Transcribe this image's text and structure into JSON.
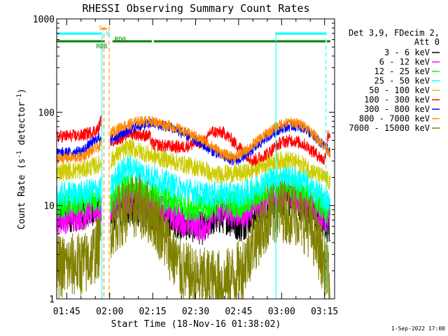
{
  "chart_data": {
    "type": "line",
    "title": "RHESSI Observing Summary Count Rates",
    "xlabel": "Start Time (18-Nov-16 01:38:02)",
    "ylabel_main": "Count Rate (s",
    "ylabel_sup1": "-1",
    "ylabel_mid": " detector",
    "ylabel_sup2": "-1",
    "ylabel_end": ")",
    "yscale": "log",
    "ylim": [
      1,
      1000
    ],
    "xlim_minutes": [
      101.5,
      198.5
    ],
    "y_ticks": [
      {
        "value": 1,
        "label": "1"
      },
      {
        "value": 10,
        "label": "10"
      },
      {
        "value": 100,
        "label": "100"
      },
      {
        "value": 1000,
        "label": "1000"
      }
    ],
    "x_ticks": [
      {
        "value": 105,
        "label": "01:45"
      },
      {
        "value": 120,
        "label": "02:00"
      },
      {
        "value": 135,
        "label": "02:15"
      },
      {
        "value": 150,
        "label": "02:30"
      },
      {
        "value": 165,
        "label": "02:45"
      },
      {
        "value": 180,
        "label": "03:00"
      },
      {
        "value": 195,
        "label": "03:15"
      }
    ],
    "legend": {
      "placement": "right",
      "header": [
        "Det 3,9, FDecim 2,",
        "Att 0"
      ],
      "entries": [
        {
          "label": "3 - 6 keV",
          "color": "#000000"
        },
        {
          "label": "6 - 12 keV",
          "color": "#ff00ff"
        },
        {
          "label": "12 - 25 keV",
          "color": "#00ff00"
        },
        {
          "label": "25 - 50 keV",
          "color": "#00ffff"
        },
        {
          "label": "50 - 100 keV",
          "color": "#cccc00"
        },
        {
          "label": "100 - 300 keV",
          "color": "#ff0000"
        },
        {
          "label": "300 - 800 keV",
          "color": "#0000ff"
        },
        {
          "label": "800 - 7000 keV",
          "color": "#ff8800"
        },
        {
          "label": "7000 - 15000 keV",
          "color": "#808000"
        }
      ]
    },
    "markers": {
      "saa_label": "S",
      "night_label": "N",
      "rd0_label": "RD0",
      "rd6_label": "RD6",
      "night_color": "#00ffff",
      "saa_color": "#ff8800",
      "decim_color": "#008000",
      "night_bars": [
        [
          101.5,
          117.0
        ],
        [
          178.0,
          195.5
        ]
      ],
      "saa_bar": [
        117.0,
        119.0
      ],
      "night_lines": [
        {
          "x": 117.3,
          "dash": false
        },
        {
          "x": 178.0,
          "dash": false
        },
        {
          "x": 195.5,
          "dash": true
        }
      ],
      "saa_lines": [
        {
          "x": 118.0,
          "dash": true
        },
        {
          "x": 119.8,
          "dash": true
        }
      ],
      "decim_bars": [
        [
          101.5,
          117.5
        ],
        [
          117.5,
          118.3
        ],
        [
          121.0,
          134.7
        ],
        [
          135.4,
          155.5
        ],
        [
          155.5,
          169.0
        ],
        [
          169.0,
          195.3
        ],
        [
          195.8,
          197.0
        ]
      ]
    },
    "series": [
      {
        "name": "3 - 6 keV",
        "color": "#000000",
        "noise": 0.18,
        "x": [
          101.5,
          110,
          117,
          119,
          120.3,
          123,
          127,
          135,
          145,
          154,
          155,
          160,
          166,
          170,
          175,
          182,
          188,
          192,
          196,
          197
        ],
        "y": [
          7.5,
          8,
          10,
          null,
          7,
          9,
          9.5,
          8,
          6.5,
          5.5,
          7,
          7.5,
          6,
          8,
          10,
          12,
          10,
          8,
          6,
          6
        ]
      },
      {
        "name": "6 - 12 keV",
        "color": "#ff00ff",
        "noise": 0.17,
        "x": [
          101.5,
          110,
          117,
          119,
          120.3,
          123,
          127,
          135,
          145,
          154,
          155,
          160,
          166,
          170,
          175,
          182,
          188,
          192,
          196,
          197
        ],
        "y": [
          7,
          8,
          9.5,
          null,
          9,
          11,
          12,
          10,
          7,
          5.8,
          8,
          9,
          8,
          9.5,
          11.5,
          13,
          11,
          9,
          7,
          6.5
        ]
      },
      {
        "name": "12 - 25 keV",
        "color": "#00ff00",
        "noise": 0.15,
        "x": [
          101.5,
          110,
          117,
          119,
          120.3,
          123,
          127,
          135,
          145,
          154,
          155,
          160,
          166,
          170,
          175,
          182,
          188,
          192,
          196,
          197
        ],
        "y": [
          10,
          10.5,
          12,
          null,
          11,
          14,
          16,
          13,
          10,
          9,
          10,
          11,
          10,
          12,
          15,
          17,
          14,
          11,
          9,
          8
        ]
      },
      {
        "name": "25 - 50 keV",
        "color": "#00ffff",
        "noise": 0.14,
        "x": [
          101.5,
          110,
          117,
          119,
          120.3,
          123,
          127,
          135,
          145,
          154,
          155,
          160,
          166,
          170,
          175,
          182,
          188,
          192,
          196,
          197
        ],
        "y": [
          13,
          13.5,
          15,
          null,
          15,
          22,
          26,
          20,
          15,
          13,
          13,
          13.5,
          13,
          15,
          19,
          21,
          18,
          14,
          11,
          10
        ]
      },
      {
        "name": "50 - 100 keV",
        "color": "#cccc00",
        "noise": 0.1,
        "x": [
          101.5,
          110,
          117,
          119,
          120.3,
          123,
          127,
          135,
          145,
          154,
          155,
          160,
          166,
          170,
          175,
          182,
          188,
          192,
          196,
          197
        ],
        "y": [
          23,
          24,
          28,
          null,
          30,
          36,
          42,
          34,
          28,
          24,
          21,
          22,
          22,
          24,
          29,
          31,
          27,
          22,
          19,
          17
        ]
      },
      {
        "name": "100 - 300 keV",
        "color": "#ff0000",
        "noise": 0.07,
        "x": [
          101.5,
          110,
          116,
          117,
          119,
          120.3,
          123,
          127,
          134,
          135,
          145,
          154,
          155,
          160,
          166,
          170,
          175,
          180,
          184,
          188,
          192,
          195,
          196,
          197
        ],
        "y": [
          55,
          56,
          65,
          85,
          null,
          50,
          52,
          60,
          55,
          45,
          42,
          50,
          62,
          60,
          40,
          30,
          36,
          48,
          50,
          45,
          36,
          30,
          55,
          60
        ]
      },
      {
        "name": "300 - 800 keV",
        "color": "#0000ff",
        "noise": 0.06,
        "x": [
          101.5,
          110,
          117,
          119,
          120.3,
          124,
          130,
          135,
          142,
          150,
          155,
          160,
          164,
          166,
          170,
          175,
          180,
          184,
          188,
          192,
          196,
          197
        ],
        "y": [
          36,
          38,
          55,
          null,
          50,
          58,
          72,
          76,
          68,
          50,
          40,
          33,
          30,
          32,
          40,
          55,
          68,
          72,
          68,
          52,
          40,
          36
        ]
      },
      {
        "name": "800 - 7000 keV",
        "color": "#ff8800",
        "noise": 0.06,
        "x": [
          101.5,
          110,
          117,
          119,
          120.3,
          124,
          130,
          135,
          142,
          150,
          155,
          160,
          164,
          166,
          170,
          175,
          180,
          184,
          188,
          192,
          196,
          197
        ],
        "y": [
          32,
          33,
          44,
          null,
          60,
          70,
          80,
          80,
          70,
          55,
          45,
          35,
          33,
          36,
          45,
          60,
          75,
          78,
          72,
          55,
          40,
          36
        ]
      },
      {
        "name": "7000 - 15000 keV",
        "color": "#808000",
        "noise": 0.35,
        "x": [
          101.5,
          112,
          117,
          119,
          120.3,
          124,
          130,
          135,
          140,
          145,
          150,
          155,
          160,
          166,
          170,
          175,
          180,
          185,
          190,
          196,
          197
        ],
        "y": [
          2.2,
          2.4,
          4,
          null,
          6,
          8,
          10,
          8,
          4,
          2,
          1.6,
          1.6,
          1.5,
          2,
          4,
          7,
          9,
          8,
          6,
          2,
          1
        ]
      }
    ]
  },
  "footer": {
    "timestamp": "1-Sep-2022 17:00"
  }
}
